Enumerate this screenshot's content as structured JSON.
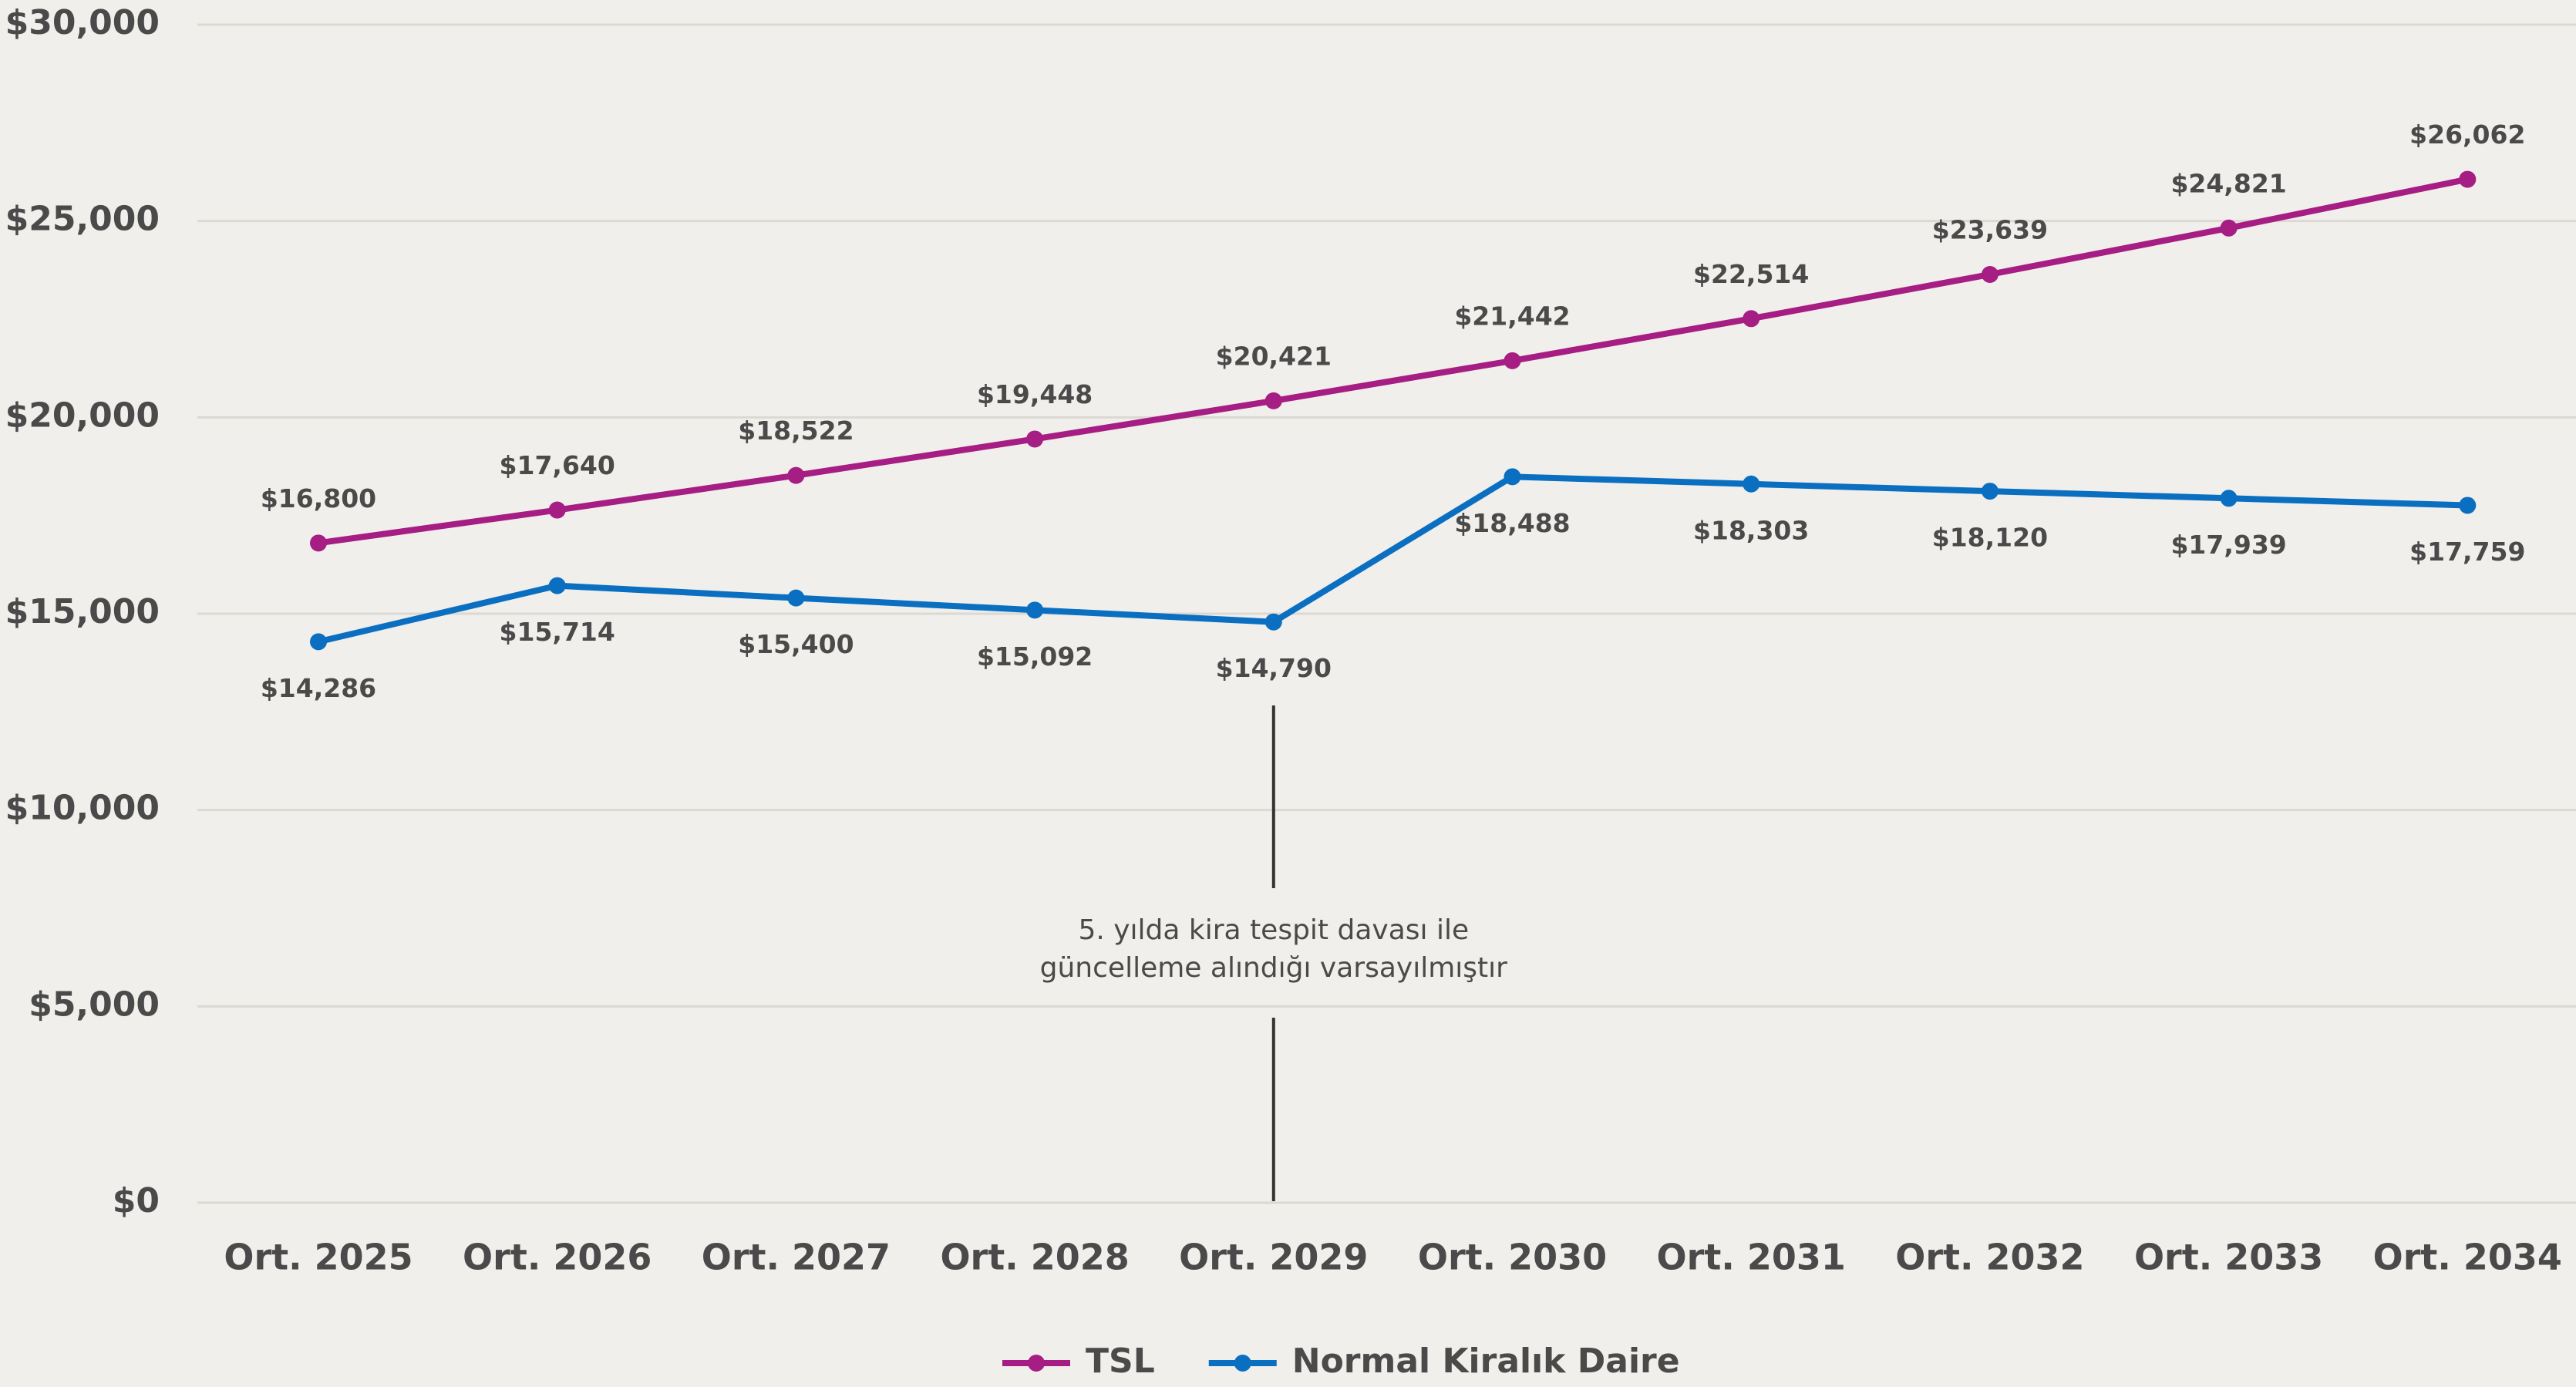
{
  "chart_data": {
    "type": "line",
    "categories": [
      "Ort. 2025",
      "Ort. 2026",
      "Ort. 2027",
      "Ort. 2028",
      "Ort. 2029",
      "Ort. 2030",
      "Ort. 2031",
      "Ort. 2032",
      "Ort. 2033",
      "Ort. 2034"
    ],
    "series": [
      {
        "name": "TSL",
        "color": "#a61d83",
        "values": [
          16800,
          17640,
          18522,
          19448,
          20421,
          21442,
          22514,
          23639,
          24821,
          26062
        ],
        "value_labels": [
          "$16,800",
          "$17,640",
          "$18,522",
          "$19,448",
          "$20,421",
          "$21,442",
          "$22,514",
          "$23,639",
          "$24,821",
          "$26,062"
        ]
      },
      {
        "name": "Normal Kiralık Daire",
        "color": "#0b6fc1",
        "values": [
          14286,
          15714,
          15400,
          15092,
          14790,
          18488,
          18303,
          18120,
          17939,
          17759
        ],
        "value_labels": [
          "$14,286",
          "$15,714",
          "$15,400",
          "$15,092",
          "$14,790",
          "$18,488",
          "$18,303",
          "$18,120",
          "$17,939",
          "$17,759"
        ]
      }
    ],
    "ylim": [
      0,
      30000
    ],
    "yticks": [
      {
        "value": 0,
        "label": "$0"
      },
      {
        "value": 5000,
        "label": "$5,000"
      },
      {
        "value": 10000,
        "label": "$10,000"
      },
      {
        "value": 15000,
        "label": "$15,000"
      },
      {
        "value": 20000,
        "label": "$20,000"
      },
      {
        "value": 25000,
        "label": "$25,000"
      },
      {
        "value": 30000,
        "label": "$30,000"
      }
    ],
    "grid": true,
    "legend": "bottom",
    "annotation": {
      "category": 4,
      "lines": [
        "5. yılda kira tespit davası ile",
        "güncelleme alındığı varsayılmıştır"
      ]
    }
  }
}
